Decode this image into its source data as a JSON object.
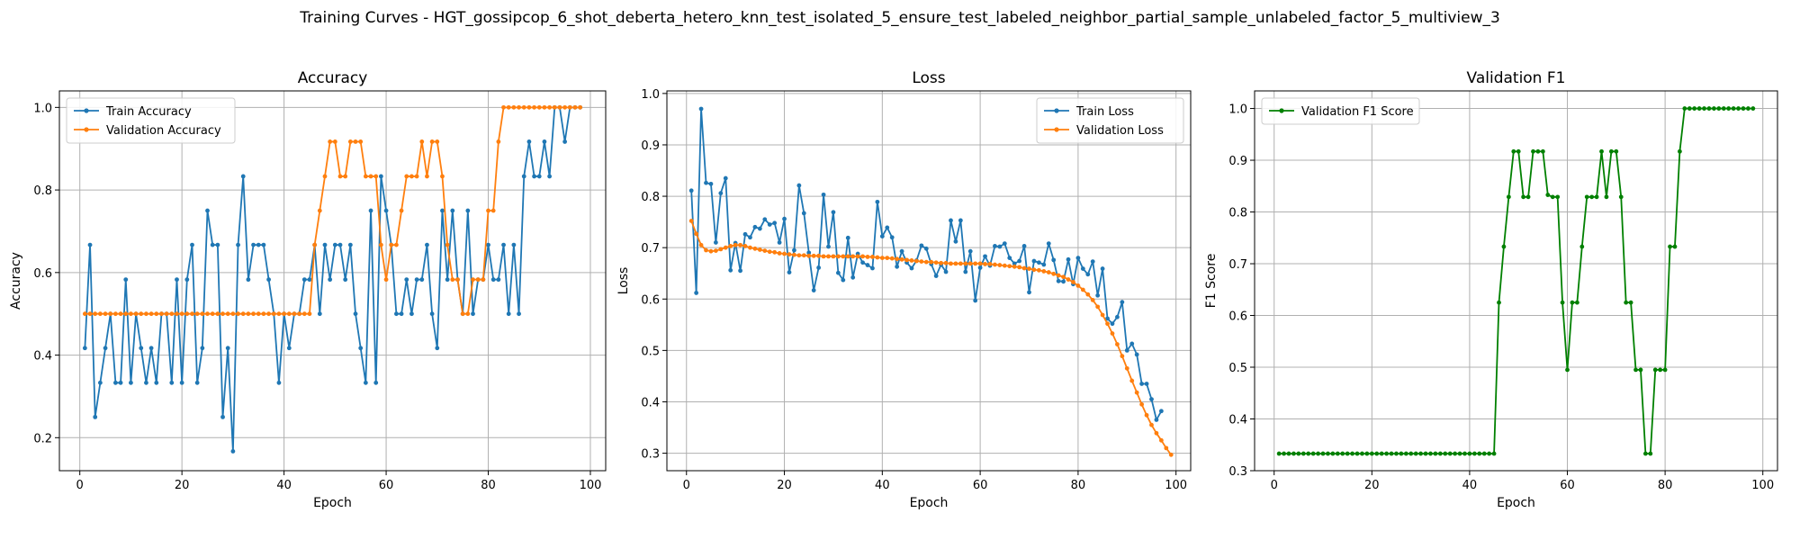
{
  "figure": {
    "suptitle": "Training Curves - HGT_gossipcop_6_shot_deberta_hetero_knn_test_isolated_5_ensure_test_labeled_neighbor_partial_sample_unlabeled_factor_5_multiview_3"
  },
  "colors": {
    "blue": "#1f77b4",
    "orange": "#ff7f0e",
    "green": "#008000",
    "grid": "#b0b0b0"
  },
  "chart_data": [
    {
      "type": "line",
      "title": "Accuracy",
      "xlabel": "Epoch",
      "ylabel": "Accuracy",
      "xlim": [
        -4,
        103
      ],
      "ylim": [
        0.12,
        1.04
      ],
      "xticks": [
        0,
        20,
        40,
        60,
        80,
        100
      ],
      "yticks": [
        0.2,
        0.4,
        0.6,
        0.8,
        1.0
      ],
      "ytick_labels": [
        "0.2",
        "0.4",
        "0.6",
        "0.8",
        "1.0"
      ],
      "grid": true,
      "legend_loc": "upper left",
      "series": [
        {
          "name": "Train Accuracy",
          "color": "#1f77b4",
          "values": [
            0.417,
            0.667,
            0.25,
            0.333,
            0.417,
            0.5,
            0.333,
            0.333,
            0.583,
            0.333,
            0.5,
            0.417,
            0.333,
            0.417,
            0.333,
            0.5,
            0.5,
            0.333,
            0.583,
            0.333,
            0.583,
            0.667,
            0.333,
            0.417,
            0.75,
            0.667,
            0.667,
            0.25,
            0.417,
            0.167,
            0.667,
            0.833,
            0.583,
            0.667,
            0.667,
            0.667,
            0.583,
            0.5,
            0.333,
            0.5,
            0.417,
            0.5,
            0.5,
            0.583,
            0.583,
            0.667,
            0.5,
            0.667,
            0.583,
            0.667,
            0.667,
            0.583,
            0.667,
            0.5,
            0.417,
            0.333,
            0.75,
            0.333,
            0.833,
            0.75,
            0.667,
            0.5,
            0.5,
            0.583,
            0.5,
            0.583,
            0.583,
            0.667,
            0.5,
            0.417,
            0.75,
            0.583,
            0.75,
            0.583,
            0.5,
            0.75,
            0.5,
            0.583,
            0.583,
            0.667,
            0.583,
            0.583,
            0.667,
            0.5,
            0.667,
            0.5,
            0.833,
            0.917,
            0.833,
            0.833,
            0.917,
            0.833,
            1.0,
            1.0,
            0.917,
            1.0,
            1.0,
            1.0
          ]
        },
        {
          "name": "Validation Accuracy",
          "color": "#ff7f0e",
          "values": [
            0.5,
            0.5,
            0.5,
            0.5,
            0.5,
            0.5,
            0.5,
            0.5,
            0.5,
            0.5,
            0.5,
            0.5,
            0.5,
            0.5,
            0.5,
            0.5,
            0.5,
            0.5,
            0.5,
            0.5,
            0.5,
            0.5,
            0.5,
            0.5,
            0.5,
            0.5,
            0.5,
            0.5,
            0.5,
            0.5,
            0.5,
            0.5,
            0.5,
            0.5,
            0.5,
            0.5,
            0.5,
            0.5,
            0.5,
            0.5,
            0.5,
            0.5,
            0.5,
            0.5,
            0.5,
            0.667,
            0.75,
            0.833,
            0.917,
            0.917,
            0.833,
            0.833,
            0.917,
            0.917,
            0.917,
            0.833,
            0.833,
            0.833,
            0.667,
            0.583,
            0.667,
            0.667,
            0.75,
            0.833,
            0.833,
            0.833,
            0.917,
            0.833,
            0.917,
            0.917,
            0.833,
            0.667,
            0.583,
            0.583,
            0.5,
            0.5,
            0.583,
            0.583,
            0.583,
            0.75,
            0.75,
            0.917,
            1.0,
            1.0,
            1.0,
            1.0,
            1.0,
            1.0,
            1.0,
            1.0,
            1.0,
            1.0,
            1.0,
            1.0,
            1.0,
            1.0,
            1.0,
            1.0
          ]
        }
      ]
    },
    {
      "type": "line",
      "title": "Loss",
      "xlabel": "Epoch",
      "ylabel": "Loss",
      "xlim": [
        -4,
        103
      ],
      "ylim": [
        0.266,
        1.005
      ],
      "xticks": [
        0,
        20,
        40,
        60,
        80,
        100
      ],
      "yticks": [
        0.3,
        0.4,
        0.5,
        0.6,
        0.7,
        0.8,
        0.9,
        1.0
      ],
      "ytick_labels": [
        "0.3",
        "0.4",
        "0.5",
        "0.6",
        "0.7",
        "0.8",
        "0.9",
        "1.0"
      ],
      "grid": true,
      "legend_loc": "upper right",
      "series": [
        {
          "name": "Train Loss",
          "color": "#1f77b4",
          "values": [
            0.811,
            0.612,
            0.97,
            0.826,
            0.824,
            0.71,
            0.806,
            0.835,
            0.656,
            0.709,
            0.655,
            0.726,
            0.72,
            0.74,
            0.737,
            0.755,
            0.745,
            0.748,
            0.71,
            0.756,
            0.652,
            0.695,
            0.821,
            0.767,
            0.69,
            0.617,
            0.661,
            0.803,
            0.702,
            0.769,
            0.651,
            0.637,
            0.719,
            0.642,
            0.688,
            0.671,
            0.666,
            0.66,
            0.789,
            0.722,
            0.739,
            0.72,
            0.663,
            0.693,
            0.671,
            0.66,
            0.675,
            0.704,
            0.698,
            0.668,
            0.645,
            0.667,
            0.653,
            0.753,
            0.712,
            0.753,
            0.653,
            0.693,
            0.597,
            0.661,
            0.683,
            0.665,
            0.703,
            0.702,
            0.708,
            0.68,
            0.669,
            0.674,
            0.703,
            0.613,
            0.674,
            0.671,
            0.667,
            0.708,
            0.676,
            0.635,
            0.634,
            0.677,
            0.629,
            0.68,
            0.659,
            0.648,
            0.673,
            0.607,
            0.659,
            0.562,
            0.552,
            0.565,
            0.594,
            0.5,
            0.513,
            0.492,
            0.435,
            0.435,
            0.405,
            0.365,
            0.382
          ]
        },
        {
          "name": "Validation Loss",
          "color": "#ff7f0e",
          "values": [
            0.752,
            0.727,
            0.705,
            0.695,
            0.693,
            0.694,
            0.697,
            0.7,
            0.703,
            0.705,
            0.705,
            0.703,
            0.7,
            0.698,
            0.696,
            0.694,
            0.692,
            0.691,
            0.689,
            0.688,
            0.687,
            0.686,
            0.685,
            0.685,
            0.684,
            0.684,
            0.684,
            0.683,
            0.683,
            0.683,
            0.683,
            0.683,
            0.683,
            0.683,
            0.683,
            0.683,
            0.682,
            0.682,
            0.681,
            0.68,
            0.68,
            0.679,
            0.678,
            0.677,
            0.676,
            0.675,
            0.674,
            0.673,
            0.672,
            0.672,
            0.671,
            0.67,
            0.67,
            0.669,
            0.669,
            0.669,
            0.669,
            0.669,
            0.669,
            0.669,
            0.668,
            0.668,
            0.667,
            0.666,
            0.665,
            0.664,
            0.663,
            0.662,
            0.66,
            0.659,
            0.657,
            0.656,
            0.654,
            0.652,
            0.649,
            0.646,
            0.643,
            0.638,
            0.633,
            0.626,
            0.618,
            0.609,
            0.598,
            0.585,
            0.569,
            0.552,
            0.533,
            0.512,
            0.489,
            0.465,
            0.441,
            0.418,
            0.395,
            0.374,
            0.355,
            0.339,
            0.325,
            0.31,
            0.297
          ]
        }
      ]
    },
    {
      "type": "line",
      "title": "Validation F1",
      "xlabel": "Epoch",
      "ylabel": "F1 Score",
      "xlim": [
        -4,
        103
      ],
      "ylim": [
        0.3,
        1.034
      ],
      "xticks": [
        0,
        20,
        40,
        60,
        80,
        100
      ],
      "yticks": [
        0.3,
        0.4,
        0.5,
        0.6,
        0.7,
        0.8,
        0.9,
        1.0
      ],
      "ytick_labels": [
        "0.3",
        "0.4",
        "0.5",
        "0.6",
        "0.7",
        "0.8",
        "0.9",
        "1.0"
      ],
      "grid": true,
      "legend_loc": "upper left",
      "series": [
        {
          "name": "Validation F1 Score",
          "color": "#008000",
          "values": [
            0.333,
            0.333,
            0.333,
            0.333,
            0.333,
            0.333,
            0.333,
            0.333,
            0.333,
            0.333,
            0.333,
            0.333,
            0.333,
            0.333,
            0.333,
            0.333,
            0.333,
            0.333,
            0.333,
            0.333,
            0.333,
            0.333,
            0.333,
            0.333,
            0.333,
            0.333,
            0.333,
            0.333,
            0.333,
            0.333,
            0.333,
            0.333,
            0.333,
            0.333,
            0.333,
            0.333,
            0.333,
            0.333,
            0.333,
            0.333,
            0.333,
            0.333,
            0.333,
            0.333,
            0.333,
            0.625,
            0.733,
            0.829,
            0.917,
            0.917,
            0.829,
            0.829,
            0.917,
            0.917,
            0.917,
            0.833,
            0.829,
            0.829,
            0.625,
            0.495,
            0.625,
            0.625,
            0.733,
            0.829,
            0.829,
            0.829,
            0.917,
            0.829,
            0.917,
            0.917,
            0.829,
            0.625,
            0.625,
            0.495,
            0.495,
            0.333,
            0.333,
            0.495,
            0.495,
            0.495,
            0.733,
            0.733,
            0.917,
            1.0,
            1.0,
            1.0,
            1.0,
            1.0,
            1.0,
            1.0,
            1.0,
            1.0,
            1.0,
            1.0,
            1.0,
            1.0,
            1.0,
            1.0
          ]
        }
      ]
    }
  ]
}
